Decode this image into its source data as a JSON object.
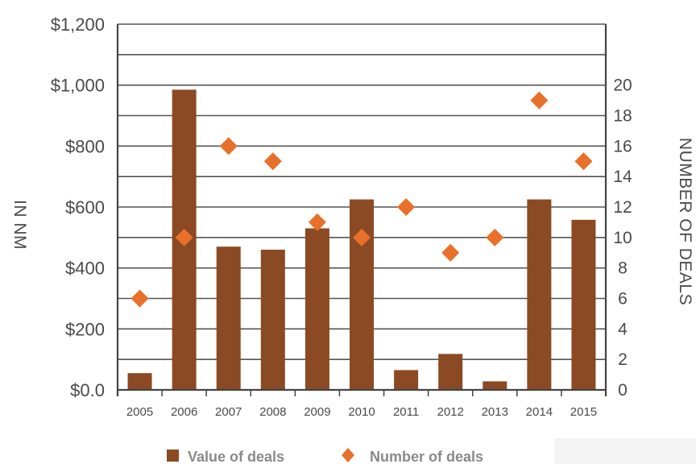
{
  "chart_data": {
    "type": "bar",
    "categories": [
      "2005",
      "2006",
      "2007",
      "2008",
      "2009",
      "2010",
      "2011",
      "2012",
      "2013",
      "2014",
      "2015"
    ],
    "series": [
      {
        "name": "Value of deals",
        "type": "bar",
        "axis": "left",
        "color": "#8B4A23",
        "values": [
          55,
          985,
          470,
          460,
          530,
          625,
          65,
          118,
          28,
          625,
          558
        ]
      },
      {
        "name": "Number of deals",
        "type": "scatter",
        "marker": "diamond",
        "axis": "right",
        "color": "#E8702A",
        "values": [
          6,
          10,
          16,
          15,
          11,
          10,
          12,
          9,
          10,
          19,
          15
        ]
      }
    ],
    "ylabel_left": "IN NM",
    "ylabel_right": "NUMBER OF DEALS",
    "ylim_left": [
      0,
      1200
    ],
    "yticks_left": [
      {
        "value": 0,
        "label": "$0.0"
      },
      {
        "value": 200,
        "label": "$200"
      },
      {
        "value": 400,
        "label": "$400"
      },
      {
        "value": 600,
        "label": "$600"
      },
      {
        "value": 800,
        "label": "$800"
      },
      {
        "value": 1000,
        "label": "$1,000"
      },
      {
        "value": 1200,
        "label": "$1,200"
      }
    ],
    "ylim_right": [
      0,
      24
    ],
    "yticks_right": [
      "0",
      "2",
      "4",
      "6",
      "8",
      "10",
      "12",
      "14",
      "16",
      "18",
      "20"
    ],
    "grid": true,
    "legend_position": "bottom"
  }
}
